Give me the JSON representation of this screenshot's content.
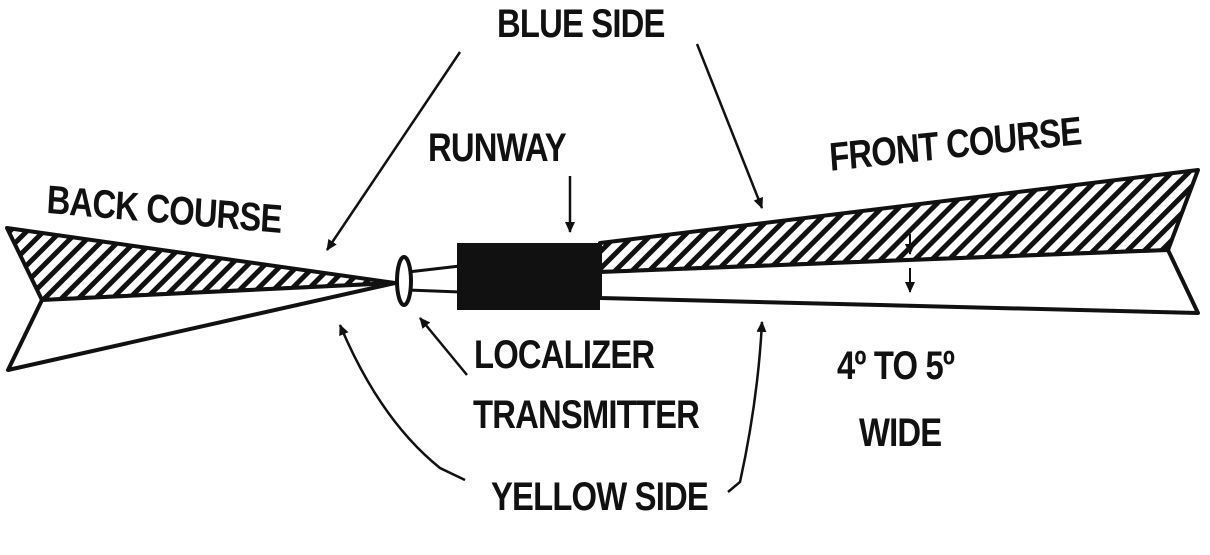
{
  "labels": {
    "blue_side": "BLUE SIDE",
    "runway": "RUNWAY",
    "front_course": "FRONT COURSE",
    "back_course": "BACK COURSE",
    "localizer": "LOCALIZER",
    "transmitter": "TRANSMITTER",
    "width_line1": "4º TO 5º",
    "width_line2": "WIDE",
    "yellow_side": "YELLOW SIDE"
  },
  "colors": {
    "ink": "#111111",
    "paper": "#ffffff"
  }
}
